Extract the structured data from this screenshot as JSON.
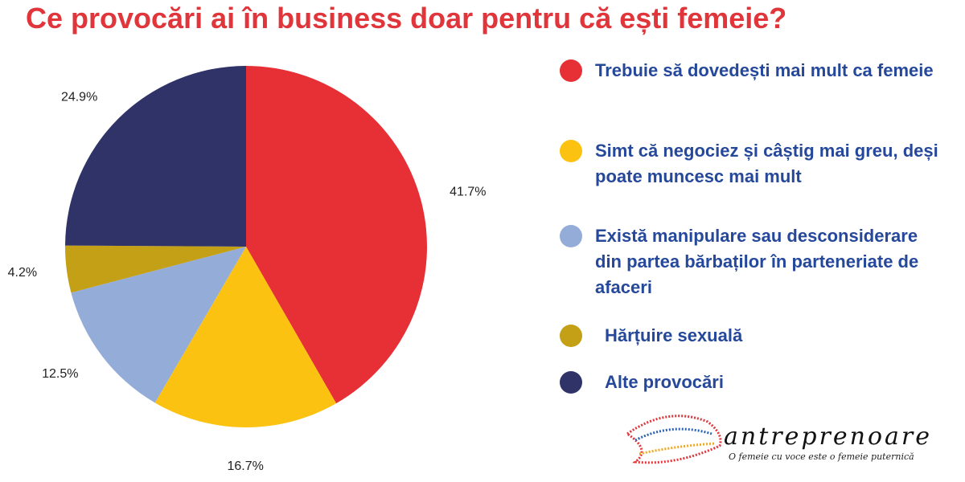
{
  "chart_data": {
    "type": "pie",
    "title": "Ce provocări ai în business doar pentru că ești femeie?",
    "categories": [
      "Trebuie să dovedești mai mult ca femeie",
      "Simt că negociez și câștig mai greu, deși poate muncesc mai mult",
      "Există manipulare sau desconsiderare din partea bărbaților în parteneriate de afaceri",
      "Hărțuire sexuală",
      "Alte provocări"
    ],
    "values": [
      41.7,
      16.7,
      12.5,
      4.2,
      24.9
    ],
    "value_labels": [
      "41.7%",
      "16.7%",
      "12.5%",
      "4.2%",
      "24.9%"
    ],
    "colors": [
      "#e63036",
      "#fcc212",
      "#94acd8",
      "#c4a016",
      "#2f3368"
    ],
    "legend": "right"
  },
  "logo": {
    "name": "antreprenoare",
    "tagline": "O femeie cu voce este o femeie puternică"
  }
}
